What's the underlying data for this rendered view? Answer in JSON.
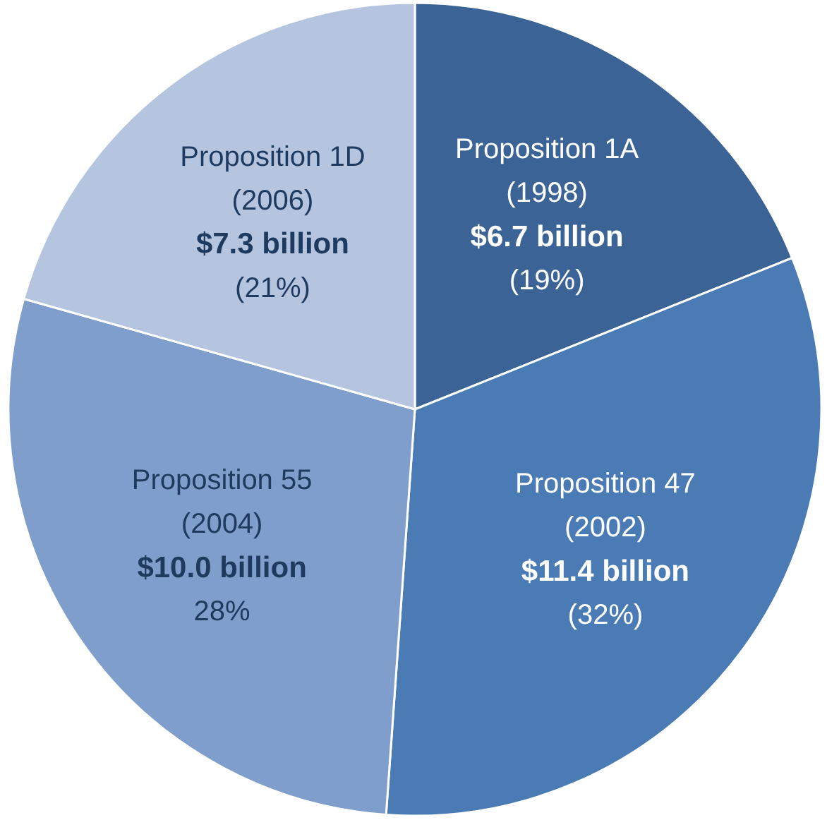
{
  "chart_data": {
    "type": "pie",
    "categories": [
      "Proposition 1A",
      "Proposition 47",
      "Proposition 55",
      "Proposition 1D"
    ],
    "values": [
      6.7,
      11.4,
      10.0,
      7.3
    ],
    "colors": [
      "#3b6396",
      "#4a7bb5",
      "#809ecc",
      "#b5c5e0"
    ],
    "value_labels": [
      "$6.7 billion",
      "$11.4 billion",
      "$10.0 billion",
      "$7.3 billion"
    ],
    "annotations": [
      {
        "text": "(1998)",
        "x": "Proposition 1A"
      },
      {
        "text": "(19%)",
        "x": "Proposition 1A"
      },
      {
        "text": "(2002)",
        "x": "Proposition 47"
      },
      {
        "text": "(32%)",
        "x": "Proposition 47"
      },
      {
        "text": "(2004)",
        "x": "Proposition 55"
      },
      {
        "text": "28%",
        "x": "Proposition 55"
      },
      {
        "text": "(2006)",
        "x": "Proposition 1D"
      },
      {
        "text": "(21%)",
        "x": "Proposition 1D"
      }
    ]
  }
}
